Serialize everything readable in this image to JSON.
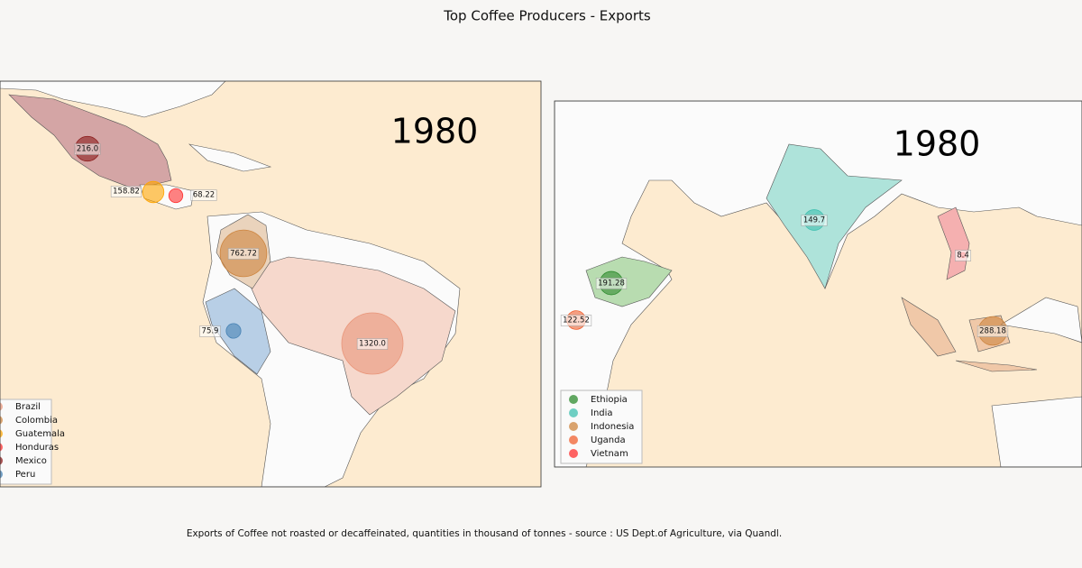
{
  "title": "Top Coffee Producers - Exports",
  "footnote": "Exports of Coffee not roasted or decaffeinated, quantities in thousand of tonnes - source : US Dept.of Agriculture, via Quandl.",
  "chart_data": [
    {
      "type": "bubble-map",
      "year": "1980",
      "series": [
        {
          "name": "Brazil",
          "color": "#e9967a",
          "values": [
            1320.0
          ],
          "value_labels": [
            "1320.0"
          ]
        },
        {
          "name": "Colombia",
          "color": "#cd853f",
          "values": [
            762.72
          ],
          "value_labels": [
            "762.72"
          ]
        },
        {
          "name": "Guatemala",
          "color": "#ffa500",
          "values": [
            158.82
          ],
          "value_labels": [
            "158.82"
          ]
        },
        {
          "name": "Honduras",
          "color": "#ff3030",
          "values": [
            68.22
          ],
          "value_labels": [
            "68.22"
          ]
        },
        {
          "name": "Mexico",
          "color": "#8b1a1a",
          "values": [
            216.0
          ],
          "value_labels": [
            "216.0"
          ]
        },
        {
          "name": "Peru",
          "color": "#4682b4",
          "values": [
            75.9
          ],
          "value_labels": [
            "75.9"
          ]
        }
      ]
    },
    {
      "type": "bubble-map",
      "year": "1980",
      "series": [
        {
          "name": "Ethiopia",
          "color": "#2e8b2e",
          "values": [
            191.28
          ],
          "value_labels": [
            "191.28"
          ]
        },
        {
          "name": "India",
          "color": "#40c0b0",
          "values": [
            149.7
          ],
          "value_labels": [
            "149.7"
          ]
        },
        {
          "name": "Indonesia",
          "color": "#cd853f",
          "values": [
            288.18
          ],
          "value_labels": [
            "288.18"
          ]
        },
        {
          "name": "Uganda",
          "color": "#f06030",
          "values": [
            122.52
          ],
          "value_labels": [
            "122.52"
          ]
        },
        {
          "name": "Vietnam",
          "color": "#ff3030",
          "values": [
            8.4
          ],
          "value_labels": [
            "8.4"
          ]
        }
      ]
    }
  ]
}
